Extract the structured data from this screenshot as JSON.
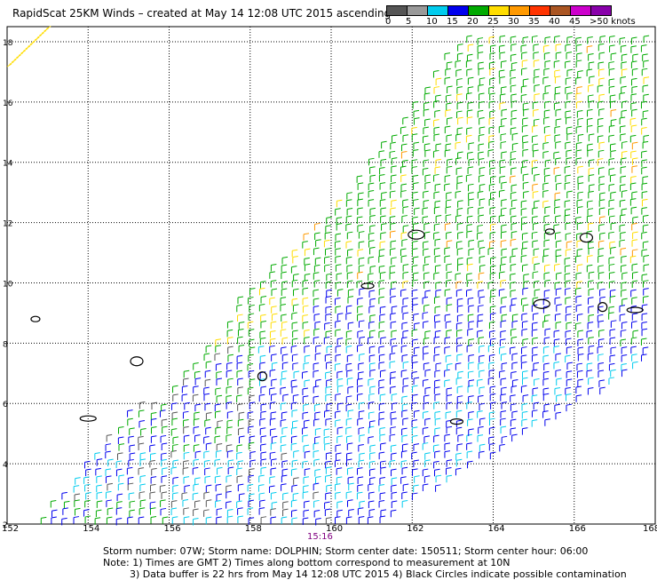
{
  "title": "RapidScat 25KM Winds – created at May 14 12:08 UTC 2015 ascending",
  "legend": {
    "colors": [
      "#555555",
      "#999999",
      "#00ccee",
      "#0000ee",
      "#00aa00",
      "#ffdd00",
      "#ff9900",
      "#ff3300",
      "#aa5522",
      "#cc00cc",
      "#8800aa"
    ],
    "labels": [
      "0",
      "5",
      "10",
      "15",
      "20",
      "25",
      "30",
      "35",
      "40",
      "45",
      ">50 knots"
    ]
  },
  "axes": {
    "x_ticks": [
      "152",
      "154",
      "156",
      "158",
      "160",
      "162",
      "164",
      "166",
      "168"
    ],
    "y_ticks": [
      "2",
      "4",
      "6",
      "8",
      "10",
      "12",
      "14",
      "16",
      "18"
    ]
  },
  "time_label": "15:16",
  "footer": {
    "line1": "Storm number: 07W;  Storm name: DOLPHIN;  Storm center date: 150511;  Storm center hour: 06:00",
    "line2": "Note: 1) Times are GMT  2) Times along bottom correspond to measurement at 10N",
    "line3": "3) Data buffer is 22 hrs from May 14 12:08 UTC 2015   4) Black Circles indicate possible contamination"
  },
  "islands": [
    {
      "name": "island-1",
      "lon": 152.7,
      "lat": 8.8
    },
    {
      "name": "island-2",
      "lon": 155.2,
      "lat": 7.4
    },
    {
      "name": "island-3",
      "lon": 154.0,
      "lat": 5.5
    },
    {
      "name": "island-4",
      "lon": 158.3,
      "lat": 6.9
    },
    {
      "name": "island-5",
      "lon": 160.9,
      "lat": 9.9
    },
    {
      "name": "island-6",
      "lon": 162.1,
      "lat": 11.6
    },
    {
      "name": "island-7",
      "lon": 165.4,
      "lat": 11.7
    },
    {
      "name": "island-8",
      "lon": 166.3,
      "lat": 11.5
    },
    {
      "name": "island-9",
      "lon": 167.5,
      "lat": 9.1
    },
    {
      "name": "island-10",
      "lon": 166.7,
      "lat": 9.2
    },
    {
      "name": "island-11",
      "lon": 163.1,
      "lat": 5.4
    },
    {
      "name": "island-12",
      "lon": 165.2,
      "lat": 9.3
    }
  ]
}
